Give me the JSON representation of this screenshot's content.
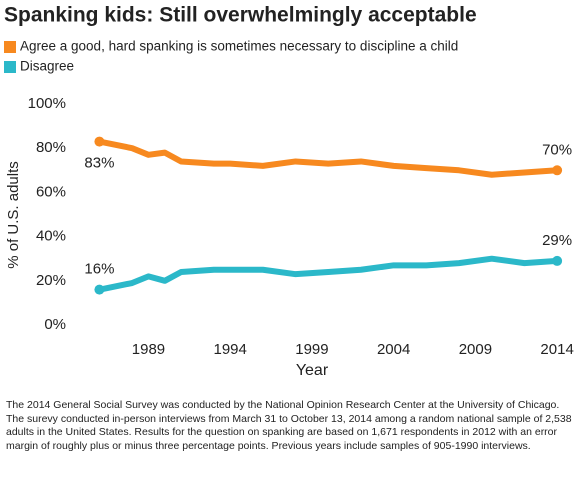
{
  "chart_data": {
    "type": "line",
    "title": "Spanking kids: Still overwhelmingly acceptable",
    "x_label": "Year",
    "y_label": "% of U.S. adults",
    "x": [
      1986,
      1988,
      1989,
      1990,
      1991,
      1993,
      1994,
      1996,
      1998,
      2000,
      2002,
      2004,
      2006,
      2008,
      2010,
      2012,
      2014
    ],
    "series": [
      {
        "name": "Agree a good, hard spanking is sometimes necessary to discipline a child",
        "color": "#f7891f",
        "values": [
          83,
          80,
          77,
          78,
          74,
          73,
          73,
          72,
          74,
          73,
          74,
          72,
          71,
          70,
          68,
          69,
          70
        ],
        "value_labels": [
          "83%",
          null,
          null,
          null,
          null,
          null,
          null,
          null,
          null,
          null,
          null,
          null,
          null,
          null,
          null,
          null,
          "70%"
        ]
      },
      {
        "name": "Disagree",
        "color": "#2bb8c9",
        "values": [
          16,
          19,
          22,
          20,
          24,
          25,
          25,
          25,
          23,
          24,
          25,
          27,
          27,
          28,
          30,
          28,
          29
        ],
        "value_labels": [
          "16%",
          null,
          null,
          null,
          null,
          null,
          null,
          null,
          null,
          null,
          null,
          null,
          null,
          null,
          null,
          null,
          "29%"
        ]
      }
    ],
    "xlim": [
      1984.2,
      2015.4
    ],
    "xticks": [
      1989,
      1994,
      1999,
      2004,
      2009,
      2014
    ],
    "ylim": [
      0,
      100
    ],
    "yticks": [
      {
        "value": 0,
        "label": "0%"
      },
      {
        "value": 20,
        "label": "20%"
      },
      {
        "value": 40,
        "label": "40%"
      },
      {
        "value": 60,
        "label": "60%"
      },
      {
        "value": 80,
        "label": "80%"
      },
      {
        "value": 100,
        "label": "100%"
      }
    ],
    "note": "The 2014 General Social Survey was conducted by the National Opinion Research Center at the University of Chicago. The surevy conducted in-person interviews from March 31 to October 13, 2014 among a random national sample of 2,538 adults in the United States. Results for the question on spanking are based on 1,671 respondents in 2012 with an error margin of roughly plus or minus three percentage points. Previous years include samples of 905-1990 interviews."
  }
}
